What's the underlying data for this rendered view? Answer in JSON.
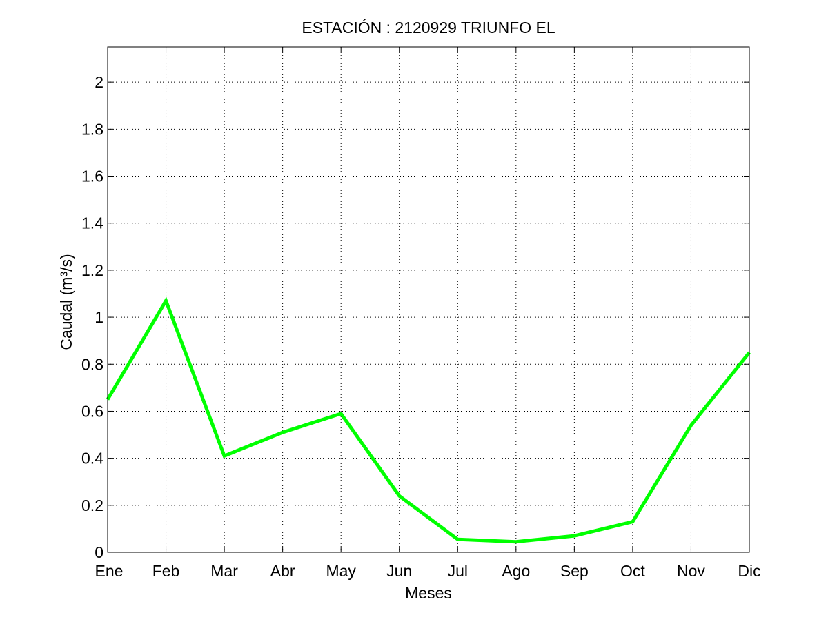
{
  "chart_data": {
    "type": "line",
    "title": "ESTACIÓN :  2120929  TRIUNFO EL",
    "xlabel": "Meses",
    "ylabel": "Caudal (m³/s)",
    "categories": [
      "Ene",
      "Feb",
      "Mar",
      "Abr",
      "May",
      "Jun",
      "Jul",
      "Ago",
      "Sep",
      "Oct",
      "Nov",
      "Dic"
    ],
    "series": [
      {
        "values": [
          0.65,
          1.07,
          0.41,
          0.51,
          0.59,
          0.24,
          0.055,
          0.045,
          0.07,
          0.13,
          0.54,
          0.85
        ],
        "color": "#00ff00"
      }
    ],
    "ylim": [
      0,
      2.15
    ],
    "yticks": [
      0,
      0.2,
      0.4,
      0.6,
      0.8,
      1,
      1.2,
      1.4,
      1.6,
      1.8,
      2
    ],
    "ytick_labels": [
      "0",
      "0.2",
      "0.4",
      "0.6",
      "0.8",
      "1",
      "1.2",
      "1.4",
      "1.6",
      "1.8",
      "2"
    ],
    "grid": true,
    "grid_style": "dotted",
    "legend": "none"
  }
}
